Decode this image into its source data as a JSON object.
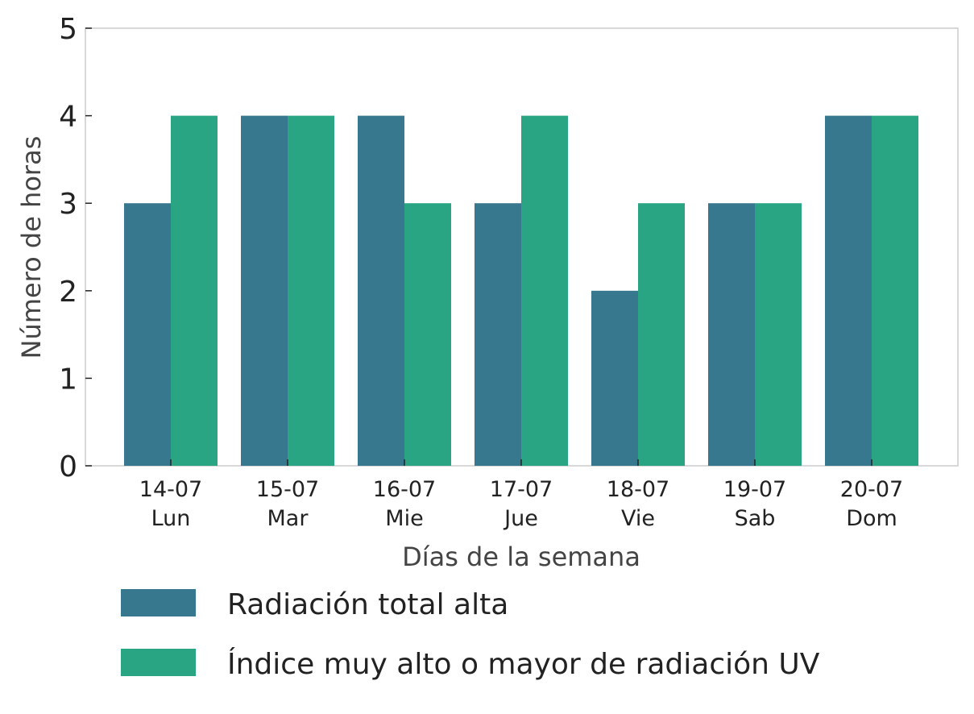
{
  "chart_data": {
    "type": "bar",
    "categories": [
      "14-07\nLun",
      "15-07\nMar",
      "16-07\nMie",
      "17-07\nJue",
      "18-07\nVie",
      "19-07\nSab",
      "20-07\nDom"
    ],
    "category_lines": [
      [
        "14-07",
        "Lun"
      ],
      [
        "15-07",
        "Mar"
      ],
      [
        "16-07",
        "Mie"
      ],
      [
        "17-07",
        "Jue"
      ],
      [
        "18-07",
        "Vie"
      ],
      [
        "19-07",
        "Sab"
      ],
      [
        "20-07",
        "Dom"
      ]
    ],
    "series": [
      {
        "name": "Radiación total alta",
        "color": "#38788f",
        "values": [
          3,
          4,
          4,
          3,
          2,
          3,
          4
        ]
      },
      {
        "name": "Índice muy alto o mayor de radiación UV",
        "color": "#29a583",
        "values": [
          4,
          4,
          3,
          4,
          3,
          3,
          4
        ]
      }
    ],
    "title": "",
    "xlabel": "Días de la semana",
    "ylabel": "Número de horas",
    "ylim": [
      0,
      5
    ],
    "yticks": [
      "0",
      "1",
      "2",
      "3",
      "4",
      "5"
    ],
    "grid": false,
    "legend_position": "bottom"
  }
}
